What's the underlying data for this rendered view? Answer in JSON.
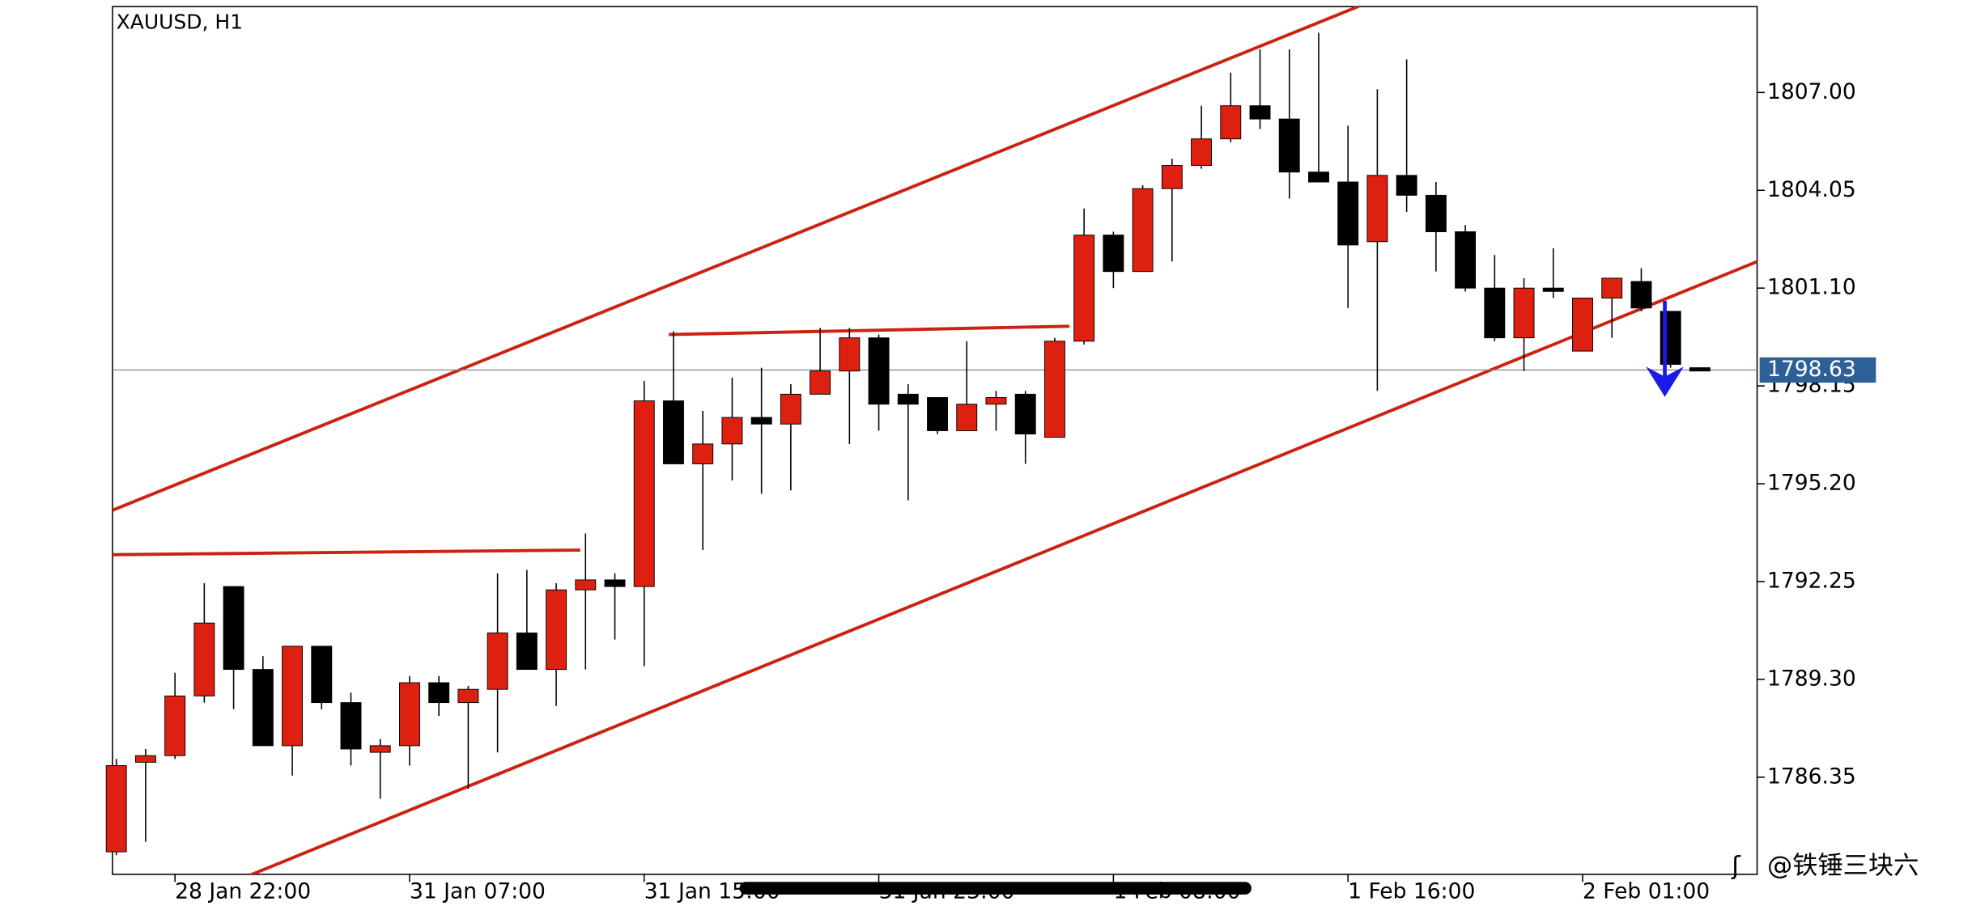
{
  "chart_data": {
    "type": "candlestick",
    "title": "XAUUSD, H1",
    "categories": [
      null,
      null,
      "28 Jan 22:00",
      null,
      null,
      null,
      null,
      null,
      null,
      null,
      "31 Jan 07:00",
      null,
      null,
      null,
      null,
      null,
      null,
      null,
      "31 Jan 15:00",
      null,
      null,
      null,
      null,
      null,
      null,
      null,
      "31 Jan 23:00",
      null,
      null,
      null,
      null,
      null,
      null,
      null,
      "1 Feb 08:00",
      null,
      null,
      null,
      null,
      null,
      null,
      null,
      "1 Feb 16:00",
      null,
      null,
      null,
      null,
      null,
      null,
      null,
      "2 Feb 01:00",
      null,
      null,
      null,
      null
    ],
    "open": [
      1784.1,
      1786.8,
      1787.0,
      1788.8,
      1792.1,
      1789.6,
      1787.3,
      1790.3,
      1788.6,
      1787.1,
      1787.3,
      1789.2,
      1788.6,
      1789.0,
      1790.7,
      1789.6,
      1792.0,
      1792.3,
      1792.1,
      1797.7,
      1795.8,
      1796.4,
      1797.2,
      1797.0,
      1797.9,
      1798.6,
      1799.6,
      1797.9,
      1797.8,
      1796.8,
      1797.6,
      1797.9,
      1796.6,
      1799.5,
      1802.7,
      1801.6,
      1804.1,
      1804.8,
      1805.6,
      1806.6,
      1806.2,
      1804.6,
      1804.3,
      1802.5,
      1804.5,
      1803.9,
      1802.8,
      1801.1,
      1799.6,
      1801.1,
      1799.2,
      1800.8,
      1801.3,
      1800.4,
      1798.7
    ],
    "high": [
      1786.9,
      1787.2,
      1789.5,
      1792.2,
      1792.1,
      1790.0,
      1790.3,
      1790.3,
      1788.9,
      1787.5,
      1789.4,
      1789.4,
      1789.1,
      1792.5,
      1792.6,
      1792.2,
      1793.7,
      1792.5,
      1798.3,
      1799.8,
      1797.4,
      1798.4,
      1798.7,
      1798.2,
      1799.9,
      1799.9,
      1799.7,
      1798.2,
      1797.8,
      1799.5,
      1798.0,
      1798.0,
      1799.6,
      1803.5,
      1802.8,
      1804.2,
      1805.0,
      1806.6,
      1807.6,
      1808.3,
      1808.3,
      1808.8,
      1806.0,
      1807.1,
      1808.0,
      1804.3,
      1803.0,
      1802.1,
      1801.4,
      1802.3,
      1800.8,
      1801.4,
      1801.7,
      1800.4,
      1798.7
    ],
    "low": [
      1784.0,
      1784.4,
      1786.9,
      1788.6,
      1788.4,
      1787.3,
      1786.4,
      1788.4,
      1786.7,
      1785.7,
      1786.7,
      1788.2,
      1786.0,
      1787.1,
      1789.6,
      1788.5,
      1789.6,
      1790.5,
      1789.7,
      1795.8,
      1793.2,
      1795.3,
      1794.9,
      1795.0,
      1797.9,
      1796.4,
      1796.8,
      1794.7,
      1796.7,
      1796.8,
      1796.8,
      1795.8,
      1796.6,
      1799.4,
      1801.1,
      1801.6,
      1801.9,
      1804.7,
      1805.5,
      1805.9,
      1803.8,
      1804.3,
      1800.5,
      1798.0,
      1803.4,
      1801.6,
      1801.0,
      1799.5,
      1798.6,
      1800.8,
      1799.2,
      1799.6,
      1800.4,
      1798.7,
      1798.6
    ],
    "close": [
      1786.7,
      1787.0,
      1788.8,
      1791.0,
      1789.6,
      1787.3,
      1790.3,
      1788.6,
      1787.2,
      1787.3,
      1789.2,
      1788.6,
      1789.0,
      1790.7,
      1789.6,
      1792.0,
      1792.3,
      1792.1,
      1797.7,
      1795.8,
      1796.4,
      1797.2,
      1797.0,
      1797.9,
      1798.6,
      1799.6,
      1797.6,
      1797.6,
      1796.8,
      1797.6,
      1797.8,
      1796.7,
      1799.5,
      1802.7,
      1801.6,
      1804.1,
      1804.8,
      1805.6,
      1806.6,
      1806.2,
      1804.6,
      1804.3,
      1802.4,
      1804.5,
      1803.9,
      1802.8,
      1801.1,
      1799.6,
      1801.1,
      1801.0,
      1800.8,
      1801.4,
      1800.5,
      1798.8,
      1798.6
    ],
    "up_color": "#dd2010",
    "down_color": "#000000",
    "line_color": "#cc2211",
    "xlim": [
      -0.13,
      55.95
    ],
    "ylim": [
      1783.42,
      1809.59
    ],
    "yticks": [
      {
        "value": 1786.35,
        "label": "1786.35"
      },
      {
        "value": 1789.3,
        "label": "1789.30"
      },
      {
        "value": 1792.25,
        "label": "1792.25"
      },
      {
        "value": 1795.2,
        "label": "1795.20"
      },
      {
        "value": 1798.15,
        "label": "1798.15"
      },
      {
        "value": 1801.1,
        "label": "1801.10"
      },
      {
        "value": 1804.05,
        "label": "1804.05"
      },
      {
        "value": 1807,
        "label": "1807.00"
      }
    ],
    "current_price": 1798.63,
    "lines": [
      {
        "from": [
          -0.13,
          1794.4
        ],
        "to": [
          42.37,
          1809.6
        ]
      },
      {
        "from": [
          4.57,
          1783.4
        ],
        "to": [
          55.95,
          1801.9
        ]
      },
      {
        "from": [
          -0.13,
          1793.06
        ],
        "to": [
          15.82,
          1793.2
        ]
      },
      {
        "from": [
          18.84,
          1799.7
        ],
        "to": [
          32.5,
          1799.95
        ]
      }
    ],
    "watermark": "@铁锤三块六"
  }
}
